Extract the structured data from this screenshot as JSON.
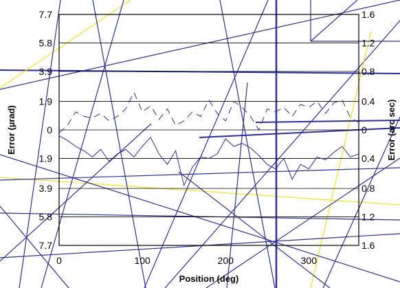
{
  "chart_data": {
    "type": "line",
    "xlabel": "Position (deg)",
    "ylabel_left": "Error (µrad)",
    "ylabel_right": "Error (arc sec)",
    "xlim": [
      0,
      360
    ],
    "x_ticks": [
      "0",
      "100",
      "200",
      "300"
    ],
    "x_tick_values": [
      0,
      100,
      200,
      300
    ],
    "ylim": [
      -7.7,
      7.7
    ],
    "y_left_ticks": [
      "7.7",
      "5.8",
      "3.9",
      "1.9",
      "0",
      "1.9",
      "3.9",
      "5.8",
      "7.7"
    ],
    "y_left_values": [
      7.7,
      5.8,
      3.9,
      1.9,
      0,
      -1.9,
      -3.9,
      -5.8,
      -7.7
    ],
    "y_right_ticks": [
      "1.6",
      "1.2",
      "0.8",
      "0.4",
      "0",
      "0.4",
      "0.8",
      "1.2",
      "1.6"
    ],
    "grid": true,
    "series": [
      {
        "style": "dashed",
        "x": [
          0,
          10,
          20,
          30,
          40,
          50,
          60,
          70,
          80,
          90,
          100,
          110,
          120,
          130,
          140,
          150,
          160,
          170,
          180,
          190,
          200,
          210,
          220,
          230,
          240,
          250,
          260,
          270,
          280,
          290,
          300,
          310,
          320,
          330,
          340,
          350,
          360
        ],
        "values": [
          -0.2,
          0.3,
          1.2,
          0.9,
          0.8,
          1.1,
          0.6,
          0.9,
          1.4,
          2.5,
          1.2,
          1.6,
          0.7,
          1.4,
          0.3,
          0.6,
          1.2,
          0.9,
          2.0,
          1.1,
          0.6,
          1.9,
          1.5,
          0.9,
          0.0,
          1.4,
          1.2,
          1.5,
          0.9,
          1.7,
          1.5,
          1.9,
          1.1,
          1.8,
          2.0,
          0.8,
          0.5
        ]
      },
      {
        "style": "solid",
        "x": [
          0,
          10,
          20,
          30,
          40,
          50,
          60,
          70,
          80,
          90,
          100,
          110,
          120,
          130,
          140,
          150,
          160,
          170,
          180,
          190,
          200,
          210,
          220,
          230,
          240,
          250,
          260,
          270,
          280,
          290,
          300,
          310,
          320,
          330,
          340,
          350,
          360
        ],
        "values": [
          -0.4,
          -0.7,
          -1.1,
          -1.4,
          -1.8,
          -1.3,
          -2.1,
          -1.6,
          -1.3,
          -1.8,
          -1.1,
          -0.5,
          -1.6,
          -2.3,
          -1.4,
          -3.7,
          -2.5,
          -1.8,
          -1.9,
          -1.6,
          -0.6,
          -1.1,
          -0.9,
          -1.2,
          -1.7,
          -2.3,
          -2.6,
          -1.9,
          -3.3,
          -2.3,
          -2.6,
          -1.8,
          -2.0,
          -1.5,
          -1.1,
          -1.8,
          -1.6
        ]
      }
    ]
  }
}
